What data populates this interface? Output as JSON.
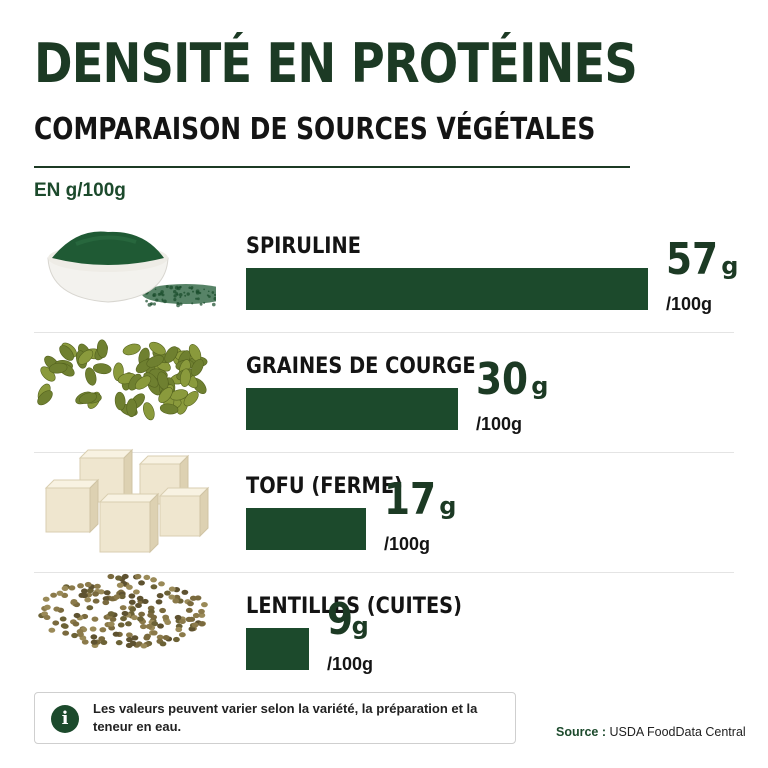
{
  "header": {
    "title": "DENSITÉ EN PROTÉINES",
    "subtitle": "COMPARAISON DE SOURCES VÉGÉTALES",
    "unit_label": "EN g/100g"
  },
  "colors": {
    "bar": "#1c4a2c",
    "title": "#1c3a24",
    "spirulina": "#1f5a34",
    "pumpkin_seed": "#8a9a3c",
    "tofu": "#efe6cf",
    "lentil": "#7a6a3e"
  },
  "chart_data": {
    "type": "bar",
    "orientation": "horizontal",
    "title": "DENSITÉ EN PROTÉINES",
    "subtitle": "COMPARAISON DE SOURCES VÉGÉTALES",
    "unit": "EN g/100g",
    "xlim": [
      0,
      60
    ],
    "grid": false,
    "categories": [
      "SPIRULINE",
      "GRAINES DE COURGE",
      "TOFU (FERME)",
      "LENTILLES (CUITES)"
    ],
    "values": [
      57,
      30,
      17,
      9
    ],
    "value_suffix": "g",
    "value_per": "/100g",
    "icons": [
      "spirulina-powder-bowl-icon",
      "pumpkin-seeds-icon",
      "tofu-cubes-icon",
      "lentils-pile-icon"
    ]
  },
  "footer": {
    "note": "Les valeurs peuvent varier selon la variété, la préparation et la teneur en eau.",
    "source_label": "Source :",
    "source_value": "USDA FoodData Central"
  }
}
